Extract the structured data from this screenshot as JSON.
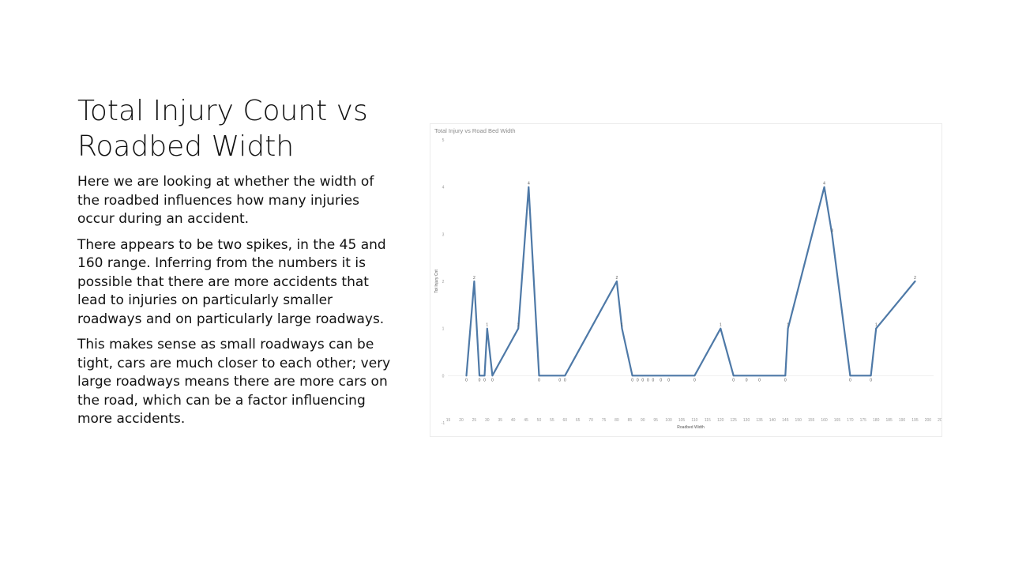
{
  "slide": {
    "title": "Total Injury Count vs Roadbed Width",
    "paragraphs": [
      "Here we are looking at whether the width of the roadbed influences how many injuries occur during an accident.",
      "There appears to be two spikes, in the 45 and 160 range. Inferring from the numbers it is possible that there are more accidents that lead to injuries on particularly smaller roadways and on particularly large roadways.",
      "This makes sense as small roadways can be tight, cars are much closer to each other; very large roadways means there are more cars on the road, which can be a factor influencing more accidents."
    ]
  },
  "chart_data": {
    "type": "line",
    "title": "Total Injury vs Road Bed Width",
    "xlabel": "Roadbed Width",
    "ylabel": "Tot Injury Cnt",
    "xlim": [
      13,
      204
    ],
    "ylim": [
      -1,
      5
    ],
    "x_ticks": [
      15,
      20,
      25,
      30,
      35,
      40,
      45,
      50,
      55,
      60,
      65,
      70,
      75,
      80,
      85,
      90,
      95,
      100,
      105,
      110,
      115,
      120,
      125,
      130,
      135,
      140,
      145,
      150,
      155,
      160,
      165,
      170,
      175,
      180,
      185,
      190,
      195,
      200,
      205
    ],
    "y_ticks": [
      -1,
      0,
      1,
      2,
      3,
      4,
      5
    ],
    "grid": false,
    "line_color": "#4e79a7",
    "series": [
      {
        "x": [
          22,
          25,
          27,
          29,
          30,
          32,
          42,
          46,
          50,
          58,
          60,
          80,
          82,
          86,
          88,
          90,
          92,
          94,
          97,
          100,
          110,
          120,
          125,
          130,
          135,
          145,
          146,
          160,
          163,
          170,
          178,
          180,
          195
        ],
        "y": [
          0,
          2,
          0,
          0,
          1,
          0,
          1,
          4,
          0,
          0,
          0,
          2,
          1,
          0,
          0,
          0,
          0,
          0,
          0,
          0,
          0,
          1,
          0,
          0,
          0,
          0,
          1,
          4,
          3,
          0,
          0,
          1,
          2
        ]
      }
    ]
  }
}
